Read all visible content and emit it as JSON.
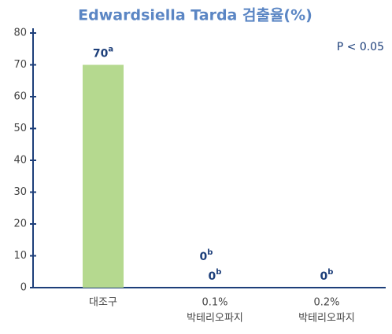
{
  "chart_data": {
    "type": "bar",
    "title": "Edwardsiella Tarda 검출율(%)",
    "categories": [
      [
        "대조구"
      ],
      [
        "0.1%",
        "박테리오파지"
      ],
      [
        "0.2%",
        "박테리오파지"
      ]
    ],
    "values": [
      70,
      0,
      0
    ],
    "significance": [
      "a",
      "b",
      "b"
    ],
    "color": "#b5d98f",
    "ylim": [
      0,
      80
    ],
    "yticks": [
      0,
      10,
      20,
      30,
      40,
      50,
      60,
      70,
      80
    ],
    "annotations": [
      {
        "text": "P < 0.05"
      },
      {
        "text": "0",
        "sup": "b"
      }
    ]
  }
}
